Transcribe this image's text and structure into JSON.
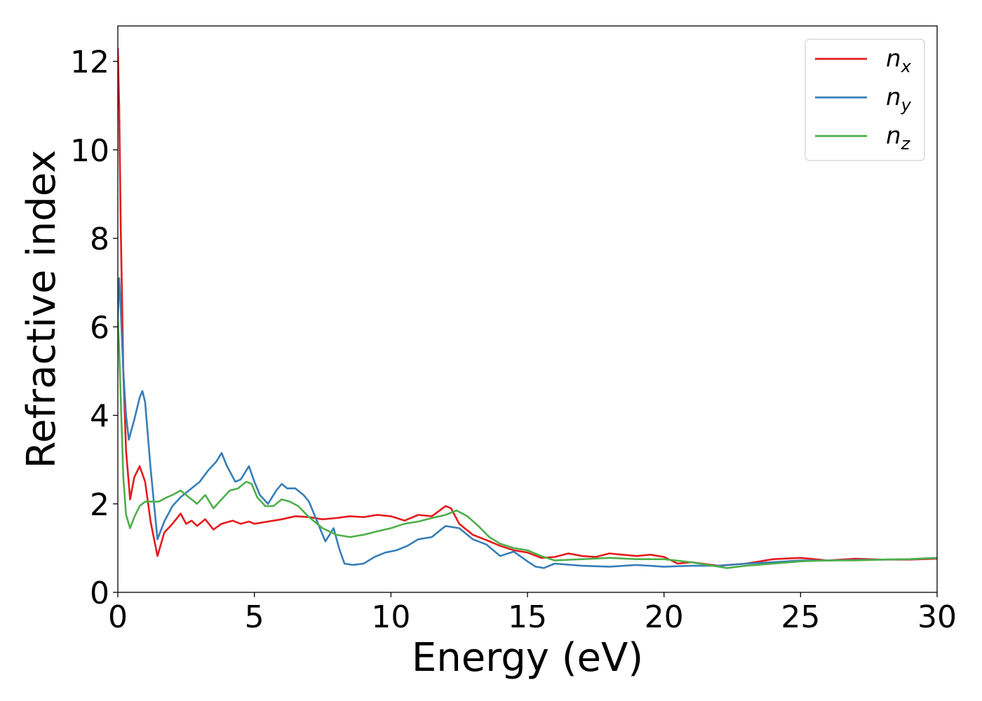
{
  "chart_data": {
    "type": "line",
    "title": "",
    "xlabel": "Energy (eV)",
    "ylabel": "Refractive index",
    "xlim": [
      0,
      30
    ],
    "ylim": [
      0,
      12.8
    ],
    "xticks": [
      0,
      5,
      10,
      15,
      20,
      25,
      30
    ],
    "yticks": [
      0,
      2,
      4,
      6,
      8,
      10,
      12
    ],
    "grid": false,
    "legend_position": "top-right",
    "series": [
      {
        "name": "n",
        "subscript": "x",
        "color": "#e41a1c",
        "x": [
          0,
          0.05,
          0.1,
          0.2,
          0.3,
          0.45,
          0.6,
          0.8,
          1.0,
          1.2,
          1.45,
          1.7,
          2.0,
          2.3,
          2.5,
          2.7,
          2.9,
          3.2,
          3.5,
          3.8,
          4.2,
          4.5,
          4.8,
          5.0,
          5.3,
          6.0,
          6.5,
          7.0,
          7.5,
          8.0,
          8.5,
          9.0,
          9.5,
          10.0,
          10.5,
          11.0,
          11.5,
          12.0,
          12.2,
          12.5,
          13.0,
          13.5,
          14.0,
          14.5,
          15.0,
          15.5,
          16.0,
          16.5,
          17.0,
          17.5,
          18.0,
          19.0,
          19.5,
          20.0,
          20.5,
          21.0,
          22.0,
          23.0,
          24.0,
          25.0,
          26.0,
          27.0,
          28.0,
          29.0,
          30.0
        ],
        "y": [
          12.3,
          11.0,
          8.5,
          5.0,
          3.2,
          2.1,
          2.6,
          2.85,
          2.5,
          1.6,
          0.82,
          1.35,
          1.55,
          1.78,
          1.55,
          1.62,
          1.5,
          1.65,
          1.42,
          1.55,
          1.62,
          1.55,
          1.6,
          1.55,
          1.58,
          1.65,
          1.72,
          1.7,
          1.65,
          1.68,
          1.72,
          1.7,
          1.75,
          1.72,
          1.62,
          1.75,
          1.72,
          1.95,
          1.9,
          1.55,
          1.3,
          1.18,
          1.05,
          0.95,
          0.9,
          0.78,
          0.8,
          0.88,
          0.82,
          0.8,
          0.88,
          0.82,
          0.85,
          0.8,
          0.65,
          0.68,
          0.6,
          0.65,
          0.75,
          0.78,
          0.72,
          0.76,
          0.74,
          0.74,
          0.76
        ]
      },
      {
        "name": "n",
        "subscript": "y",
        "color": "#377eb8",
        "x": [
          0,
          0.05,
          0.1,
          0.2,
          0.3,
          0.4,
          0.6,
          0.8,
          0.9,
          1.0,
          1.2,
          1.45,
          1.7,
          2.0,
          2.3,
          2.6,
          3.0,
          3.3,
          3.6,
          3.8,
          4.0,
          4.3,
          4.5,
          4.8,
          5.0,
          5.2,
          5.5,
          5.8,
          6.0,
          6.2,
          6.5,
          6.8,
          7.0,
          7.3,
          7.6,
          7.9,
          8.1,
          8.3,
          8.6,
          9.0,
          9.4,
          9.8,
          10.2,
          10.6,
          11.0,
          11.5,
          12.0,
          12.5,
          13.0,
          13.5,
          14.0,
          14.5,
          15.0,
          15.3,
          15.6,
          16.0,
          17.0,
          18.0,
          19.0,
          20.0,
          21.0,
          22.0,
          23.0,
          24.0,
          25.0,
          26.0,
          27.0,
          28.0,
          29.0,
          30.0
        ],
        "y": [
          6.2,
          7.1,
          6.5,
          5.0,
          4.0,
          3.45,
          3.9,
          4.4,
          4.55,
          4.3,
          2.8,
          1.2,
          1.6,
          1.95,
          2.15,
          2.3,
          2.5,
          2.75,
          2.95,
          3.15,
          2.85,
          2.5,
          2.55,
          2.85,
          2.5,
          2.2,
          2.0,
          2.3,
          2.45,
          2.35,
          2.35,
          2.2,
          2.05,
          1.6,
          1.15,
          1.45,
          1.0,
          0.65,
          0.62,
          0.65,
          0.8,
          0.9,
          0.95,
          1.05,
          1.2,
          1.25,
          1.5,
          1.45,
          1.2,
          1.08,
          0.82,
          0.92,
          0.7,
          0.58,
          0.55,
          0.65,
          0.6,
          0.58,
          0.62,
          0.58,
          0.6,
          0.6,
          0.65,
          0.68,
          0.72,
          0.72,
          0.73,
          0.74,
          0.75,
          0.78
        ]
      },
      {
        "name": "n",
        "subscript": "z",
        "color": "#4daf4a",
        "x": [
          0,
          0.05,
          0.1,
          0.2,
          0.3,
          0.45,
          0.6,
          0.8,
          1.0,
          1.2,
          1.5,
          1.8,
          2.0,
          2.3,
          2.6,
          2.9,
          3.2,
          3.5,
          3.8,
          4.1,
          4.4,
          4.7,
          4.9,
          5.1,
          5.4,
          5.7,
          6.0,
          6.3,
          6.6,
          7.0,
          7.5,
          8.0,
          8.5,
          9.0,
          9.5,
          10.0,
          10.5,
          11.0,
          11.5,
          12.0,
          12.4,
          12.8,
          13.2,
          13.6,
          14.0,
          14.5,
          15.0,
          15.5,
          16.0,
          17.0,
          18.0,
          19.0,
          20.0,
          21.0,
          22.0,
          22.3,
          23.0,
          24.0,
          25.0,
          26.0,
          27.0,
          28.0,
          29.0,
          30.0
        ],
        "y": [
          6.2,
          5.5,
          4.5,
          2.6,
          1.75,
          1.45,
          1.7,
          1.95,
          2.05,
          2.05,
          2.05,
          2.15,
          2.2,
          2.3,
          2.15,
          2.0,
          2.2,
          1.9,
          2.1,
          2.3,
          2.35,
          2.5,
          2.45,
          2.15,
          1.95,
          1.95,
          2.1,
          2.05,
          1.95,
          1.7,
          1.45,
          1.3,
          1.25,
          1.3,
          1.38,
          1.45,
          1.55,
          1.6,
          1.68,
          1.75,
          1.85,
          1.72,
          1.5,
          1.25,
          1.1,
          1.0,
          0.95,
          0.82,
          0.72,
          0.75,
          0.78,
          0.75,
          0.75,
          0.68,
          0.58,
          0.55,
          0.6,
          0.65,
          0.7,
          0.72,
          0.72,
          0.74,
          0.75,
          0.78
        ]
      }
    ]
  }
}
